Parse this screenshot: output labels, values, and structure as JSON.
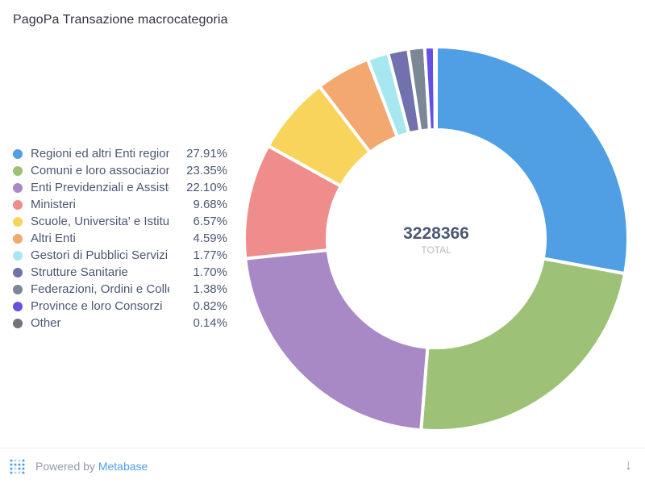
{
  "header": {
    "title": "PagoPa Transazione macrocategoria"
  },
  "chart_data": {
    "type": "pie",
    "categories": [
      "Regioni ed altri Enti regionali",
      "Comuni e loro associazioni",
      "Enti Previdenziali e Assistenziali",
      "Ministeri",
      "Scuole, Universita' e Istituti",
      "Altri Enti",
      "Gestori di Pubblici Servizi",
      "Strutture Sanitarie",
      "Federazioni, Ordini e Collegi",
      "Province e loro Consorzi",
      "Other"
    ],
    "percent_labels": [
      "27.91%",
      "23.35%",
      "22.10%",
      "9.68%",
      "6.57%",
      "4.59%",
      "1.77%",
      "1.70%",
      "1.38%",
      "0.82%",
      "0.14%"
    ],
    "values": [
      27.91,
      23.35,
      22.1,
      9.68,
      6.57,
      4.59,
      1.77,
      1.7,
      1.38,
      0.82,
      0.14
    ],
    "colors": [
      "#509ee3",
      "#9cc177",
      "#a989c5",
      "#ef8c8c",
      "#f9d45c",
      "#f2a86f",
      "#a7e7f0",
      "#7172ad",
      "#7b8796",
      "#6450e3",
      "#727479"
    ],
    "total_value": "3228366",
    "total_label": "TOTAL",
    "legend_position": "left"
  },
  "footer": {
    "powered_by": "Powered by ",
    "brand": "Metabase",
    "download_icon": "↓"
  }
}
